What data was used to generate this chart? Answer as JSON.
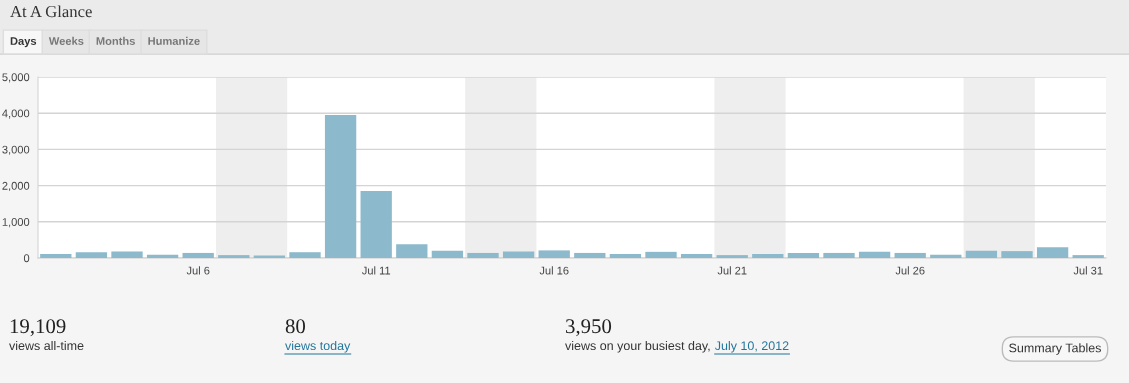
{
  "chart_data": [
    {
      "type": "bar",
      "title": "At A Glance",
      "annotations": [
        "Days",
        "Weeks",
        "Months",
        "Humanize"
      ],
      "x": [
        "2012-07-02",
        "2012-07-03",
        "2012-07-04",
        "2012-07-05",
        "2012-07-06",
        "2012-07-07",
        "2012-07-08",
        "2012-07-09",
        "2012-07-10",
        "2012-07-11",
        "2012-07-12",
        "2012-07-13",
        "2012-07-14",
        "2012-07-15",
        "2012-07-16",
        "2012-07-17",
        "2012-07-18",
        "2012-07-19",
        "2012-07-20",
        "2012-07-21",
        "2012-07-22",
        "2012-07-23",
        "2012-07-24",
        "2012-07-25",
        "2012-07-26",
        "2012-07-27",
        "2012-07-28",
        "2012-07-29",
        "2012-07-30",
        "2012-07-31"
      ],
      "values": [
        110,
        160,
        180,
        90,
        140,
        80,
        70,
        160,
        3950,
        1850,
        380,
        200,
        140,
        180,
        210,
        140,
        110,
        170,
        110,
        80,
        110,
        140,
        140,
        170,
        140,
        90,
        200,
        190,
        300,
        80
      ],
      "color": "#8db9cc",
      "xlim": [
        "2012-07-01T12:00",
        "2012-07-31T12:00"
      ],
      "xticks": [
        {
          "value": "2012-07-06",
          "label": "Jul 6"
        },
        {
          "value": "2012-07-11",
          "label": "Jul 11"
        },
        {
          "value": "2012-07-16",
          "label": "Jul 16"
        },
        {
          "value": "2012-07-21",
          "label": "Jul 21"
        },
        {
          "value": "2012-07-26",
          "label": "Jul 26"
        },
        {
          "value": "2012-07-31",
          "label": "Jul 31"
        }
      ],
      "ylim": [
        0,
        5000
      ],
      "yticks": [
        0,
        {
          "value": 1000,
          "label": "1,000"
        },
        {
          "value": 2000,
          "label": "2,000"
        },
        {
          "value": 3000,
          "label": "3,000"
        },
        {
          "value": 4000,
          "label": "4,000"
        },
        {
          "value": 5000,
          "label": "5,000"
        }
      ],
      "bands": [
        {
          "axis": "x",
          "from": "2012-07-06T12:00",
          "to": "2012-07-08T12:00",
          "color": "#eeeeee"
        },
        {
          "axis": "x",
          "from": "2012-07-13T12:00",
          "to": "2012-07-15T12:00",
          "color": "#eeeeee"
        },
        {
          "axis": "x",
          "from": "2012-07-20T12:00",
          "to": "2012-07-22T12:00",
          "color": "#eeeeee"
        },
        {
          "axis": "x",
          "from": "2012-07-27T12:00",
          "to": "2012-07-29T12:00",
          "color": "#eeeeee"
        }
      ],
      "grid": "y",
      "legend": false
    },
    {
      "type": "other",
      "annotations": [
        "19,109",
        "views all-time",
        "80",
        "views today",
        "3,950",
        "views on your busiest day, ",
        "July 10, 2012",
        "Summary Tables"
      ]
    }
  ]
}
